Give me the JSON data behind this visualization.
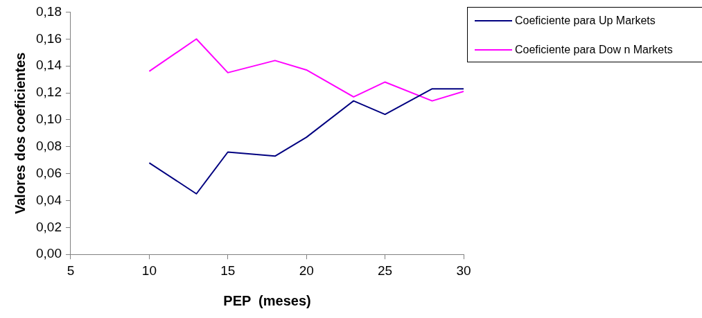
{
  "chart_data": {
    "type": "line",
    "xlabel": "PEP  (meses)",
    "ylabel": "Valores dos coeficientes",
    "x": [
      10,
      13,
      15,
      18,
      20,
      23,
      25,
      28,
      30
    ],
    "series": [
      {
        "name": "Coeficiente para Up Markets",
        "color": "#000080",
        "values": [
          0.068,
          0.045,
          0.076,
          0.073,
          0.087,
          0.114,
          0.104,
          0.123,
          0.123
        ]
      },
      {
        "name": "Coeficiente para Dow n Markets",
        "color": "#ff00ff",
        "values": [
          0.136,
          0.16,
          0.135,
          0.144,
          0.137,
          0.117,
          0.128,
          0.114,
          0.121
        ]
      }
    ],
    "xlim": [
      5,
      30
    ],
    "xticks": [
      5,
      10,
      15,
      20,
      25,
      30
    ],
    "ylim": [
      0,
      0.18
    ],
    "yticks": [
      {
        "value": 0,
        "label": "0,00"
      },
      {
        "value": 0.02,
        "label": "0,02"
      },
      {
        "value": 0.04,
        "label": "0,04"
      },
      {
        "value": 0.06,
        "label": "0,06"
      },
      {
        "value": 0.08,
        "label": "0,08"
      },
      {
        "value": 0.1,
        "label": "0,10"
      },
      {
        "value": 0.12,
        "label": "0,12"
      },
      {
        "value": 0.14,
        "label": "0,14"
      },
      {
        "value": 0.16,
        "label": "0,16"
      },
      {
        "value": 0.18,
        "label": "0,18"
      }
    ],
    "legend": "top right",
    "marker": "none",
    "line_style": "solid"
  }
}
